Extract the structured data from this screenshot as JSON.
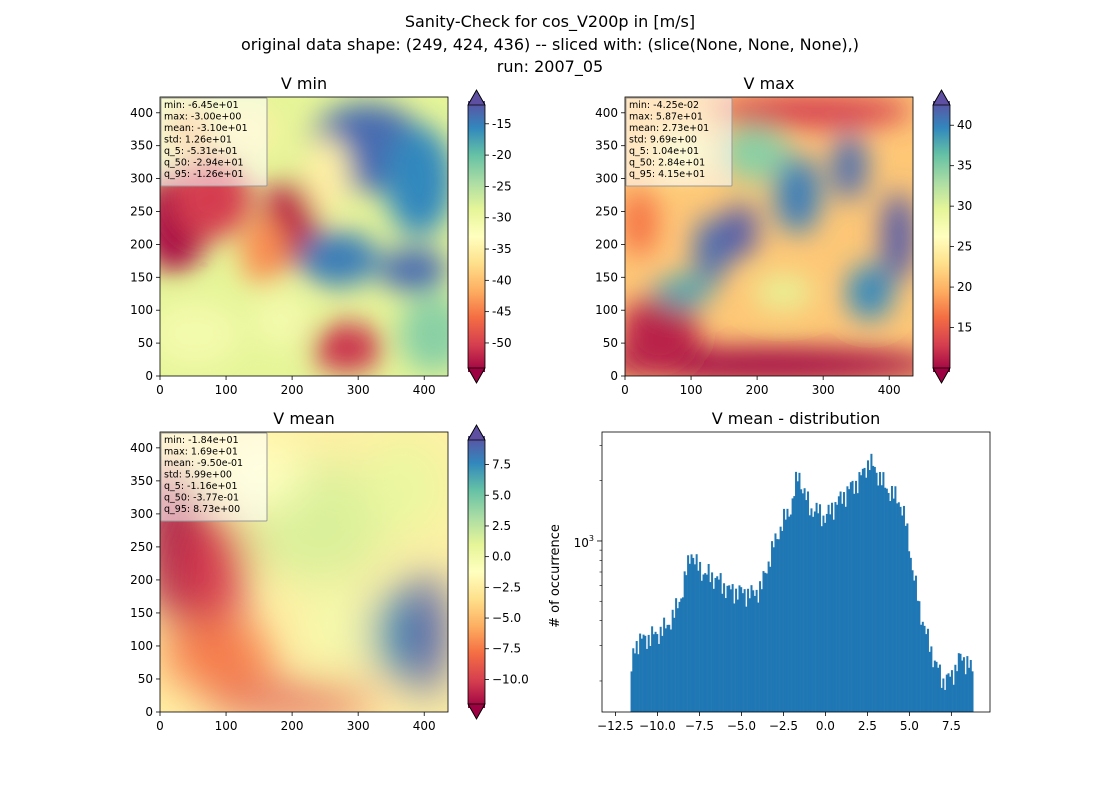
{
  "figure": {
    "title_lines": [
      "Sanity-Check for cos_V200p in [m/s]",
      "original data shape: (249, 424, 436) -- sliced with: (slice(None, None, None),)",
      "run: 2007_05"
    ]
  },
  "chart_data": [
    {
      "type": "heatmap",
      "title": "V min",
      "xlim": [
        0,
        436
      ],
      "ylim": [
        0,
        424
      ],
      "xticks": [
        "0",
        "100",
        "200",
        "300",
        "400"
      ],
      "yticks": [
        "0",
        "50",
        "100",
        "150",
        "200",
        "250",
        "300",
        "350",
        "400"
      ],
      "colormap": "Spectral",
      "colorbar": {
        "min": -54,
        "max": -12,
        "ticks": [
          "-15",
          "-20",
          "-25",
          "-30",
          "-35",
          "-40",
          "-45",
          "-50"
        ],
        "extend": "both"
      },
      "stats": [
        "min: -6.45e+01",
        "max: -3.00e+00",
        "mean: -3.10e+01",
        "std: 1.26e+01",
        "q_5: -5.31e+01",
        "q_50: -2.94e+01",
        "q_95: -1.26e+01"
      ]
    },
    {
      "type": "heatmap",
      "title": "V max",
      "xlim": [
        0,
        436
      ],
      "ylim": [
        0,
        424
      ],
      "xticks": [
        "0",
        "100",
        "200",
        "300",
        "400"
      ],
      "yticks": [
        "0",
        "50",
        "100",
        "150",
        "200",
        "250",
        "300",
        "350",
        "400"
      ],
      "colormap": "Spectral",
      "colorbar": {
        "min": 10,
        "max": 42.5,
        "ticks": [
          "15",
          "20",
          "25",
          "30",
          "35",
          "40"
        ],
        "extend": "both"
      },
      "stats": [
        "min: -4.25e-02",
        "max: 5.87e+01",
        "mean: 2.73e+01",
        "std: 9.69e+00",
        "q_5: 1.04e+01",
        "q_50: 2.84e+01",
        "q_95: 4.15e+01"
      ]
    },
    {
      "type": "heatmap",
      "title": "V mean",
      "xlim": [
        0,
        436
      ],
      "ylim": [
        0,
        424
      ],
      "xticks": [
        "0",
        "100",
        "200",
        "300",
        "400"
      ],
      "yticks": [
        "0",
        "50",
        "100",
        "150",
        "200",
        "250",
        "300",
        "350",
        "400"
      ],
      "colormap": "Spectral",
      "colorbar": {
        "min": -12,
        "max": 9.5,
        "ticks": [
          "7.5",
          "5.0",
          "2.5",
          "0.0",
          "−2.5",
          "−5.0",
          "−7.5",
          "−10.0"
        ],
        "extend": "both"
      },
      "stats": [
        "min: -1.84e+01",
        "max: 1.69e+01",
        "mean: -9.50e-01",
        "std: 5.99e+00",
        "q_5: -1.16e+01",
        "q_50: -3.77e-01",
        "q_95: 8.73e+00"
      ]
    },
    {
      "type": "bar",
      "title": "V mean - distribution",
      "ylabel": "# of occurrence",
      "xlabel": "",
      "yscale": "log",
      "xlim": [
        -13.3,
        9.8
      ],
      "ylim": [
        140,
        3500
      ],
      "xticks": [
        "−12.5",
        "−10.0",
        "−7.5",
        "−5.0",
        "−2.5",
        "0.0",
        "2.5",
        "5.0",
        "7.5"
      ],
      "ytick_label": "10^3",
      "color": "#1f77b4",
      "bin_range": [
        -11.6,
        8.8
      ],
      "bins": 200,
      "counts_profile": [
        [
          -11.6,
          180
        ],
        [
          -11.4,
          300
        ],
        [
          -11.0,
          320
        ],
        [
          -10.5,
          330
        ],
        [
          -10.0,
          345
        ],
        [
          -9.5,
          370
        ],
        [
          -9.0,
          430
        ],
        [
          -8.5,
          560
        ],
        [
          -8.2,
          750
        ],
        [
          -8.0,
          900
        ],
        [
          -7.7,
          760
        ],
        [
          -7.2,
          690
        ],
        [
          -6.5,
          650
        ],
        [
          -5.8,
          570
        ],
        [
          -5.0,
          555
        ],
        [
          -4.3,
          545
        ],
        [
          -3.8,
          590
        ],
        [
          -3.3,
          830
        ],
        [
          -2.8,
          1100
        ],
        [
          -2.4,
          1300
        ],
        [
          -2.0,
          1500
        ],
        [
          -1.6,
          2200
        ],
        [
          -1.3,
          1750
        ],
        [
          -0.9,
          1450
        ],
        [
          -0.4,
          1400
        ],
        [
          0.0,
          1300
        ],
        [
          0.5,
          1500
        ],
        [
          1.0,
          1650
        ],
        [
          1.5,
          1850
        ],
        [
          2.0,
          2000
        ],
        [
          2.6,
          2500
        ],
        [
          3.0,
          2250
        ],
        [
          3.5,
          1900
        ],
        [
          4.0,
          1700
        ],
        [
          4.4,
          1600
        ],
        [
          4.8,
          1200
        ],
        [
          5.2,
          700
        ],
        [
          5.6,
          460
        ],
        [
          6.0,
          340
        ],
        [
          6.5,
          250
        ],
        [
          7.0,
          200
        ],
        [
          7.5,
          210
        ],
        [
          8.0,
          260
        ],
        [
          8.5,
          250
        ],
        [
          8.8,
          210
        ]
      ]
    }
  ]
}
